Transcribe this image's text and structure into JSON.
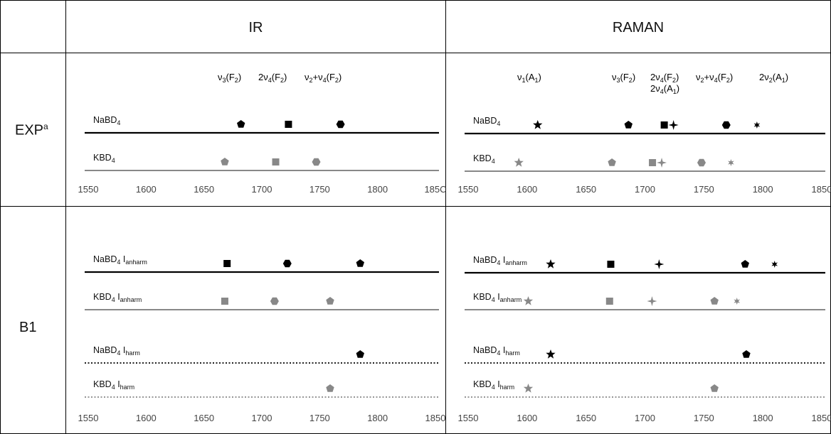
{
  "header": {
    "col1": "IR",
    "col2": "RAMAN"
  },
  "rows": {
    "exp_label": "EXP",
    "exp_sup": "a",
    "b1_label": "B1"
  },
  "colors": {
    "na": "#000000",
    "k": "#888888"
  },
  "chart_data": [
    {
      "id": "exp-ir",
      "type": "line",
      "xlim": [
        1550,
        1850
      ],
      "xticks": [
        "1550",
        "1600",
        "1650",
        "1700",
        "1750",
        "1800",
        "185C"
      ],
      "annotations": [
        "ν3(F2)",
        "2ν4(F2)",
        "ν2+ν4(F2)"
      ],
      "series": [
        {
          "name": "NaBD4",
          "style": "solid",
          "color": "#000000",
          "peaks": [
            {
              "x": 1682,
              "h": 1.0,
              "marker": "pentagon"
            },
            {
              "x": 1723,
              "h": 0.82,
              "marker": "square"
            },
            {
              "x": 1768,
              "h": 0.35,
              "marker": "hexagon"
            }
          ]
        },
        {
          "name": "KBD4",
          "style": "solid",
          "color": "#888888",
          "peaks": [
            {
              "x": 1668,
              "h": 1.0,
              "marker": "pentagon"
            },
            {
              "x": 1712,
              "h": 0.65,
              "marker": "square"
            },
            {
              "x": 1747,
              "h": 0.4,
              "marker": "hexagon"
            }
          ]
        }
      ]
    },
    {
      "id": "exp-raman",
      "type": "line",
      "xlim": [
        1550,
        1850
      ],
      "xticks": [
        "1550",
        "1600",
        "1650",
        "1700",
        "1750",
        "1800",
        "1850"
      ],
      "annotations": [
        "ν1(A1)",
        "ν3(F2)",
        "2ν4(F2)",
        "2ν4(A1)",
        "ν2+ν4(F2)",
        "2ν2(A1)"
      ],
      "series": [
        {
          "name": "NaBD4",
          "style": "solid",
          "color": "#000000",
          "peaks": [
            {
              "x": 1609,
              "h": 1.0,
              "marker": "star"
            },
            {
              "x": 1686,
              "h": 0.45,
              "marker": "pentagon"
            },
            {
              "x": 1720,
              "h": 0.75,
              "marker": "square+cross"
            },
            {
              "x": 1769,
              "h": 0.45,
              "marker": "hexagon"
            },
            {
              "x": 1795,
              "h": 0.2,
              "marker": "star6"
            }
          ]
        },
        {
          "name": "KBD4",
          "style": "solid",
          "color": "#888888",
          "peaks": [
            {
              "x": 1593,
              "h": 1.0,
              "marker": "star"
            },
            {
              "x": 1672,
              "h": 0.35,
              "marker": "pentagon"
            },
            {
              "x": 1710,
              "h": 0.45,
              "marker": "square+cross"
            },
            {
              "x": 1748,
              "h": 0.22,
              "marker": "hexagon"
            },
            {
              "x": 1773,
              "h": 0.08,
              "marker": "star6"
            }
          ]
        }
      ]
    },
    {
      "id": "b1-ir",
      "type": "line",
      "xlim": [
        1550,
        1850
      ],
      "xticks": [
        "1550",
        "1600",
        "1650",
        "1700",
        "1750",
        "1800",
        "1850"
      ],
      "series": [
        {
          "name": "NaBD4 Ianharm",
          "style": "solid",
          "color": "#000000",
          "peaks": [
            {
              "x": 1670,
              "h": 0.2,
              "marker": "square"
            },
            {
              "x": 1722,
              "h": 0.45,
              "marker": "hexagon"
            },
            {
              "x": 1785,
              "h": 1.0,
              "marker": "pentagon"
            }
          ]
        },
        {
          "name": "KBD4 Ianharm",
          "style": "solid",
          "color": "#888888",
          "peaks": [
            {
              "x": 1668,
              "h": 0.8,
              "marker": "square"
            },
            {
              "x": 1711,
              "h": 0.8,
              "marker": "hexagon"
            },
            {
              "x": 1759,
              "h": 1.0,
              "marker": "pentagon"
            }
          ]
        },
        {
          "name": "NaBD4 Iharm",
          "style": "dotted",
          "color": "#000000",
          "peaks": [
            {
              "x": 1785,
              "h": 1.0,
              "marker": "pentagon"
            }
          ]
        },
        {
          "name": "KBD4 Iharm",
          "style": "dotted",
          "color": "#888888",
          "peaks": [
            {
              "x": 1759,
              "h": 1.0,
              "marker": "pentagon"
            }
          ]
        }
      ]
    },
    {
      "id": "b1-raman",
      "type": "line",
      "xlim": [
        1550,
        1850
      ],
      "xticks": [
        "1550",
        "1600",
        "1650",
        "1700",
        "1750",
        "1800",
        "1850"
      ],
      "series": [
        {
          "name": "NaBD4 Ianharm",
          "style": "solid",
          "color": "#000000",
          "peaks": [
            {
              "x": 1620,
              "h": 1.0,
              "marker": "star"
            },
            {
              "x": 1671,
              "h": 0.2,
              "marker": "square"
            },
            {
              "x": 1712,
              "h": 0.75,
              "marker": "cross"
            },
            {
              "x": 1785,
              "h": 0.95,
              "marker": "pentagon"
            },
            {
              "x": 1810,
              "h": 0.1,
              "marker": "star6"
            }
          ]
        },
        {
          "name": "KBD4 Ianharm",
          "style": "solid",
          "color": "#888888",
          "peaks": [
            {
              "x": 1601,
              "h": 1.0,
              "marker": "star"
            },
            {
              "x": 1670,
              "h": 0.35,
              "marker": "square"
            },
            {
              "x": 1706,
              "h": 0.55,
              "marker": "cross"
            },
            {
              "x": 1759,
              "h": 0.45,
              "marker": "pentagon"
            },
            {
              "x": 1778,
              "h": 0.08,
              "marker": "star6"
            }
          ]
        },
        {
          "name": "NaBD4 Iharm",
          "style": "dotted",
          "color": "#000000",
          "peaks": [
            {
              "x": 1620,
              "h": 1.0,
              "marker": "star"
            },
            {
              "x": 1786,
              "h": 0.85,
              "marker": "pentagon"
            }
          ]
        },
        {
          "name": "KBD4 Iharm",
          "style": "dotted",
          "color": "#888888",
          "peaks": [
            {
              "x": 1601,
              "h": 1.0,
              "marker": "star"
            },
            {
              "x": 1759,
              "h": 0.75,
              "marker": "pentagon"
            }
          ]
        }
      ]
    }
  ]
}
